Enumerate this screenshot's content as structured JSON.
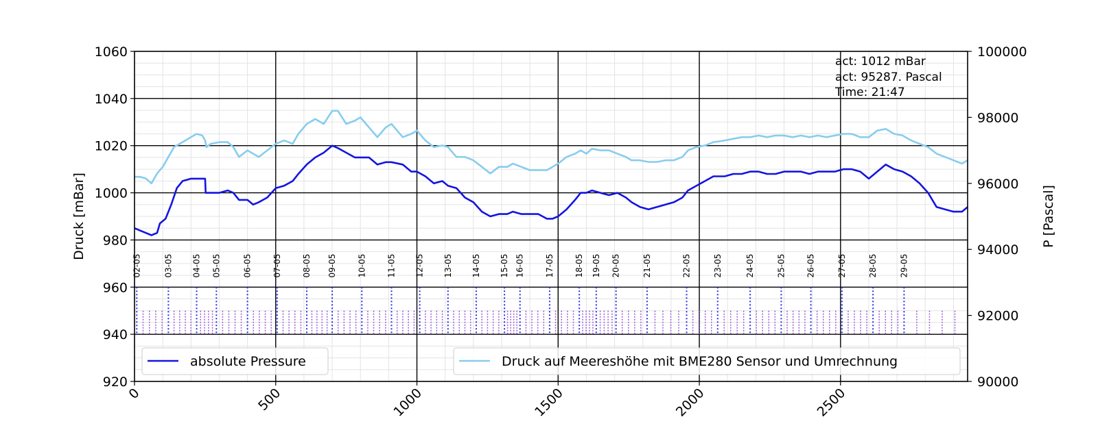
{
  "chart_data": {
    "type": "line",
    "title": "",
    "ylabel": "Druck [mBar]",
    "ylabel_right": "P [Pascal]",
    "xlim": [
      0,
      2950
    ],
    "ylim": [
      920,
      1060
    ],
    "ylim_right": [
      90000,
      100000
    ],
    "x_ticks": [
      "0",
      "500",
      "1000",
      "1500",
      "2000",
      "2500"
    ],
    "x_tick_values": [
      0,
      500,
      1000,
      1500,
      2000,
      2500
    ],
    "y_ticks_left": [
      "920",
      "940",
      "960",
      "980",
      "1000",
      "1020",
      "1040",
      "1060"
    ],
    "y_ticks_right": [
      "90000",
      "92000",
      "94000",
      "96000",
      "98000",
      "100000"
    ],
    "grid": true,
    "annotations": [
      "act: 1012 mBar",
      "act: 95287. Pascal",
      "Time: 21:47"
    ],
    "day_markers": [
      {
        "label": "02-05",
        "x": 8
      },
      {
        "label": "03-05",
        "x": 120
      },
      {
        "label": "04-05",
        "x": 220
      },
      {
        "label": "05-05",
        "x": 290
      },
      {
        "label": "06-05",
        "x": 400
      },
      {
        "label": "07-05",
        "x": 505
      },
      {
        "label": "08-05",
        "x": 610
      },
      {
        "label": "09-05",
        "x": 700
      },
      {
        "label": "10-05",
        "x": 805
      },
      {
        "label": "11-05",
        "x": 910
      },
      {
        "label": "12-05",
        "x": 1010
      },
      {
        "label": "13-05",
        "x": 1110
      },
      {
        "label": "14-05",
        "x": 1210
      },
      {
        "label": "15-05",
        "x": 1310
      },
      {
        "label": "16-05",
        "x": 1365
      },
      {
        "label": "17-05",
        "x": 1470
      },
      {
        "label": "18-05",
        "x": 1575
      },
      {
        "label": "19-05",
        "x": 1635
      },
      {
        "label": "20-05",
        "x": 1705
      },
      {
        "label": "21-05",
        "x": 1815
      },
      {
        "label": "22-05",
        "x": 1955
      },
      {
        "label": "23-05",
        "x": 2065
      },
      {
        "label": "24-05",
        "x": 2180
      },
      {
        "label": "25-05",
        "x": 2290
      },
      {
        "label": "26-05",
        "x": 2395
      },
      {
        "label": "27-05",
        "x": 2505
      },
      {
        "label": "28-05",
        "x": 2615
      },
      {
        "label": "29-05",
        "x": 2725
      }
    ],
    "series": [
      {
        "name": "absolute Pressure",
        "color": "#1414e0",
        "axis": "left",
        "x": [
          0,
          20,
          40,
          60,
          80,
          90,
          110,
          130,
          150,
          170,
          200,
          220,
          240,
          250,
          252,
          270,
          300,
          330,
          350,
          370,
          400,
          420,
          440,
          470,
          500,
          530,
          560,
          580,
          610,
          640,
          670,
          700,
          720,
          750,
          780,
          800,
          830,
          860,
          890,
          910,
          950,
          980,
          1000,
          1030,
          1060,
          1090,
          1110,
          1140,
          1170,
          1200,
          1230,
          1260,
          1290,
          1320,
          1340,
          1370,
          1400,
          1430,
          1460,
          1480,
          1500,
          1530,
          1560,
          1580,
          1600,
          1620,
          1650,
          1680,
          1710,
          1740,
          1760,
          1790,
          1820,
          1850,
          1880,
          1910,
          1940,
          1960,
          1990,
          2020,
          2050,
          2090,
          2120,
          2150,
          2180,
          2210,
          2240,
          2270,
          2300,
          2330,
          2360,
          2390,
          2420,
          2450,
          2480,
          2510,
          2540,
          2570,
          2600,
          2630,
          2660,
          2690,
          2720,
          2750,
          2780,
          2810,
          2840,
          2870,
          2900,
          2930,
          2950
        ],
        "y": [
          985,
          984,
          983,
          982,
          983,
          987,
          989,
          995,
          1002,
          1005,
          1006,
          1006,
          1006,
          1006,
          1000,
          1000,
          1000,
          1001,
          1000,
          997,
          997,
          995,
          996,
          998,
          1002,
          1003,
          1005,
          1008,
          1012,
          1015,
          1017,
          1020,
          1019,
          1017,
          1015,
          1015,
          1015,
          1012,
          1013,
          1013,
          1012,
          1009,
          1009,
          1007,
          1004,
          1005,
          1003,
          1002,
          998,
          996,
          992,
          990,
          991,
          991,
          992,
          991,
          991,
          991,
          989,
          989,
          990,
          993,
          997,
          1000,
          1000,
          1001,
          1000,
          999,
          1000,
          998,
          996,
          994,
          993,
          994,
          995,
          996,
          998,
          1001,
          1003,
          1005,
          1007,
          1007,
          1008,
          1008,
          1009,
          1009,
          1008,
          1008,
          1009,
          1009,
          1009,
          1008,
          1009,
          1009,
          1009,
          1010,
          1010,
          1009,
          1006,
          1009,
          1012,
          1010,
          1009,
          1007,
          1004,
          1000,
          994,
          993,
          992,
          992,
          994
        ]
      },
      {
        "name": "Druck auf Meereshöhe mit BME280 Sensor und Umrechnung",
        "color": "#87cdee",
        "axis": "right",
        "x": [
          0,
          20,
          40,
          60,
          80,
          100,
          120,
          140,
          160,
          180,
          200,
          220,
          240,
          250,
          255,
          270,
          300,
          330,
          350,
          370,
          400,
          420,
          440,
          470,
          500,
          530,
          560,
          580,
          610,
          640,
          670,
          700,
          720,
          750,
          780,
          800,
          830,
          860,
          890,
          910,
          950,
          980,
          1000,
          1030,
          1060,
          1090,
          1110,
          1140,
          1170,
          1200,
          1230,
          1260,
          1290,
          1320,
          1340,
          1370,
          1400,
          1430,
          1460,
          1480,
          1500,
          1530,
          1560,
          1580,
          1600,
          1620,
          1650,
          1680,
          1710,
          1740,
          1760,
          1790,
          1820,
          1850,
          1880,
          1910,
          1940,
          1960,
          1990,
          2020,
          2050,
          2090,
          2120,
          2150,
          2180,
          2210,
          2240,
          2270,
          2300,
          2330,
          2360,
          2390,
          2420,
          2450,
          2480,
          2510,
          2540,
          2570,
          2600,
          2630,
          2660,
          2690,
          2720,
          2750,
          2780,
          2810,
          2840,
          2870,
          2900,
          2930,
          2950
        ],
        "y": [
          96200,
          96200,
          96150,
          96000,
          96300,
          96500,
          96800,
          97100,
          97200,
          97300,
          97400,
          97500,
          97450,
          97300,
          97100,
          97200,
          97250,
          97250,
          97100,
          96800,
          97000,
          96900,
          96800,
          97000,
          97200,
          97300,
          97200,
          97500,
          97800,
          97950,
          97800,
          98200,
          98200,
          97800,
          97900,
          98000,
          97700,
          97400,
          97700,
          97800,
          97400,
          97500,
          97600,
          97300,
          97100,
          97150,
          97100,
          96800,
          96800,
          96700,
          96500,
          96300,
          96500,
          96500,
          96600,
          96500,
          96400,
          96400,
          96400,
          96500,
          96600,
          96800,
          96900,
          97000,
          96900,
          97050,
          97000,
          97000,
          96900,
          96800,
          96700,
          96700,
          96650,
          96650,
          96700,
          96700,
          96800,
          97000,
          97100,
          97150,
          97250,
          97300,
          97350,
          97400,
          97400,
          97450,
          97400,
          97450,
          97450,
          97400,
          97450,
          97400,
          97450,
          97400,
          97450,
          97500,
          97500,
          97400,
          97400,
          97600,
          97650,
          97500,
          97450,
          97300,
          97200,
          97100,
          96900,
          96800,
          96700,
          96600,
          96700
        ]
      }
    ]
  }
}
